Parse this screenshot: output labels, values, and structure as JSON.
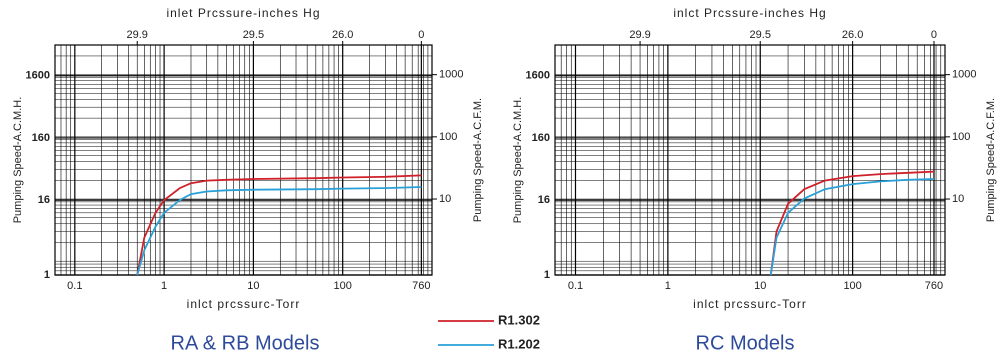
{
  "chart_data": [
    {
      "type": "line",
      "title": "RA & RB Models",
      "xlabel": "inlct prcssurc-Torr",
      "x2label": "inlet Prcssure-inches Hg",
      "ylabel": "Pumping Speed-A.C.M.H.",
      "y2label": "Pumping Speed-A.C.F.M.",
      "xscale": "log",
      "yscale": "log",
      "grid": true,
      "xlim": [
        0.06,
        1000
      ],
      "xticks": [
        0.1,
        1,
        10,
        100,
        760
      ],
      "x2ticks": [
        {
          "value": 0.5,
          "label": "29.9"
        },
        {
          "value": 10,
          "label": "29.5"
        },
        {
          "value": 100,
          "label": "26.0"
        },
        {
          "value": 760,
          "label": "0"
        }
      ],
      "ylim": [
        1,
        5000
      ],
      "yticks": [
        1,
        16,
        160,
        1600
      ],
      "y2lim": [
        0.6,
        3000
      ],
      "y2ticks": [
        10,
        100,
        1000
      ],
      "x": [
        0.5,
        0.6,
        0.8,
        1,
        1.5,
        2,
        3,
        5,
        10,
        50,
        100,
        300,
        760
      ],
      "series": [
        {
          "name": "R1.302",
          "color": "#d0202a",
          "values": [
            1,
            4,
            10,
            16,
            25,
            30,
            33,
            34,
            35,
            36,
            37,
            38,
            40
          ]
        },
        {
          "name": "R1.202",
          "color": "#2aa0d8",
          "values": [
            1,
            2.5,
            6,
            10,
            16,
            20,
            22,
            23,
            23.5,
            24,
            24.5,
            25,
            26
          ]
        }
      ]
    },
    {
      "type": "line",
      "title": "RC Models",
      "xlabel": "inlct prcssurc-Torr",
      "x2label": "inlct Prcssure-inches Hg",
      "ylabel": "Pumping Speed-A.C.M.H.",
      "y2label": "Pumping Speed-A.C.F.M.",
      "xscale": "log",
      "yscale": "log",
      "grid": true,
      "xlim": [
        0.06,
        1000
      ],
      "xticks": [
        0.1,
        1,
        10,
        100,
        760
      ],
      "x2ticks": [
        {
          "value": 0.5,
          "label": "29.9"
        },
        {
          "value": 10,
          "label": "29.5"
        },
        {
          "value": 100,
          "label": "26.0"
        },
        {
          "value": 760,
          "label": "0"
        }
      ],
      "ylim": [
        1,
        5000
      ],
      "yticks": [
        1,
        16,
        160,
        1600
      ],
      "y2lim": [
        0.6,
        3000
      ],
      "y2ticks": [
        10,
        100,
        1000
      ],
      "x": [
        13,
        15,
        20,
        30,
        50,
        100,
        200,
        400,
        760
      ],
      "series": [
        {
          "color": "#d0202a",
          "values": [
            1,
            5,
            14,
            24,
            33,
            39,
            42,
            44,
            46
          ]
        },
        {
          "color": "#2aa0d8",
          "values": [
            1,
            4,
            10,
            17,
            24,
            29,
            32,
            34,
            35
          ]
        }
      ]
    }
  ]
}
